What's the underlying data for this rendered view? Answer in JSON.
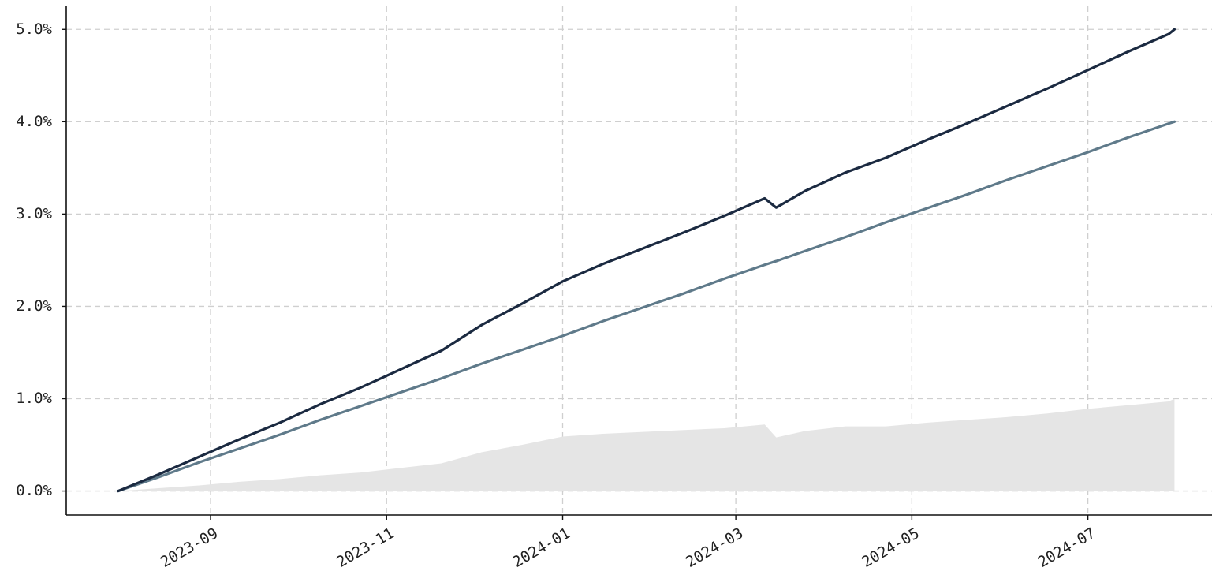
{
  "chart_data": {
    "type": "line",
    "x": [
      "2023-07-31",
      "2023-08-14",
      "2023-08-28",
      "2023-09-11",
      "2023-09-25",
      "2023-10-09",
      "2023-10-23",
      "2023-11-06",
      "2023-11-20",
      "2023-12-04",
      "2023-12-18",
      "2024-01-01",
      "2024-01-15",
      "2024-01-29",
      "2024-02-12",
      "2024-02-26",
      "2024-03-11",
      "2024-03-15",
      "2024-03-25",
      "2024-04-08",
      "2024-04-22",
      "2024-05-06",
      "2024-05-20",
      "2024-06-03",
      "2024-06-17",
      "2024-07-01",
      "2024-07-15",
      "2024-07-29",
      "2024-07-31"
    ],
    "series": [
      {
        "type": "area",
        "color": "#e5e5e5",
        "values": [
          0,
          0.03,
          0.06,
          0.1,
          0.13,
          0.17,
          0.2,
          0.25,
          0.3,
          0.42,
          0.5,
          0.59,
          0.62,
          0.64,
          0.66,
          0.68,
          0.72,
          0.58,
          0.65,
          0.7,
          0.7,
          0.74,
          0.77,
          0.8,
          0.84,
          0.89,
          0.93,
          0.97,
          1.0
        ]
      },
      {
        "type": "line",
        "color": "#5f7a8a",
        "values": [
          0,
          0.15,
          0.31,
          0.46,
          0.61,
          0.77,
          0.92,
          1.07,
          1.22,
          1.38,
          1.53,
          1.68,
          1.84,
          1.99,
          2.14,
          2.3,
          2.45,
          2.49,
          2.6,
          2.75,
          2.91,
          3.06,
          3.21,
          3.37,
          3.52,
          3.67,
          3.83,
          3.98,
          4.0
        ]
      },
      {
        "type": "line",
        "color": "#1b2a41",
        "values": [
          0,
          0.18,
          0.37,
          0.56,
          0.74,
          0.94,
          1.12,
          1.32,
          1.52,
          1.8,
          2.03,
          2.27,
          2.46,
          2.63,
          2.8,
          2.98,
          3.17,
          3.07,
          3.25,
          3.45,
          3.61,
          3.8,
          3.98,
          4.17,
          4.36,
          4.56,
          4.76,
          4.95,
          5.0
        ]
      }
    ],
    "xlim": [
      "2023-07-13",
      "2024-08-13"
    ],
    "xticks": [
      {
        "value": "2023-09-01",
        "label": "2023-09"
      },
      {
        "value": "2023-11-01",
        "label": "2023-11"
      },
      {
        "value": "2024-01-01",
        "label": "2024-01"
      },
      {
        "value": "2024-03-01",
        "label": "2024-03"
      },
      {
        "value": "2024-05-01",
        "label": "2024-05"
      },
      {
        "value": "2024-07-01",
        "label": "2024-07"
      }
    ],
    "ylim": [
      -0.26,
      5.25
    ],
    "yticks": [
      {
        "value": 0,
        "label": "0.0%"
      },
      {
        "value": 1,
        "label": "1.0%"
      },
      {
        "value": 2,
        "label": "2.0%"
      },
      {
        "value": 3,
        "label": "3.0%"
      },
      {
        "value": 4,
        "label": "4.0%"
      },
      {
        "value": 5,
        "label": "5.0%"
      }
    ],
    "grid": true
  }
}
